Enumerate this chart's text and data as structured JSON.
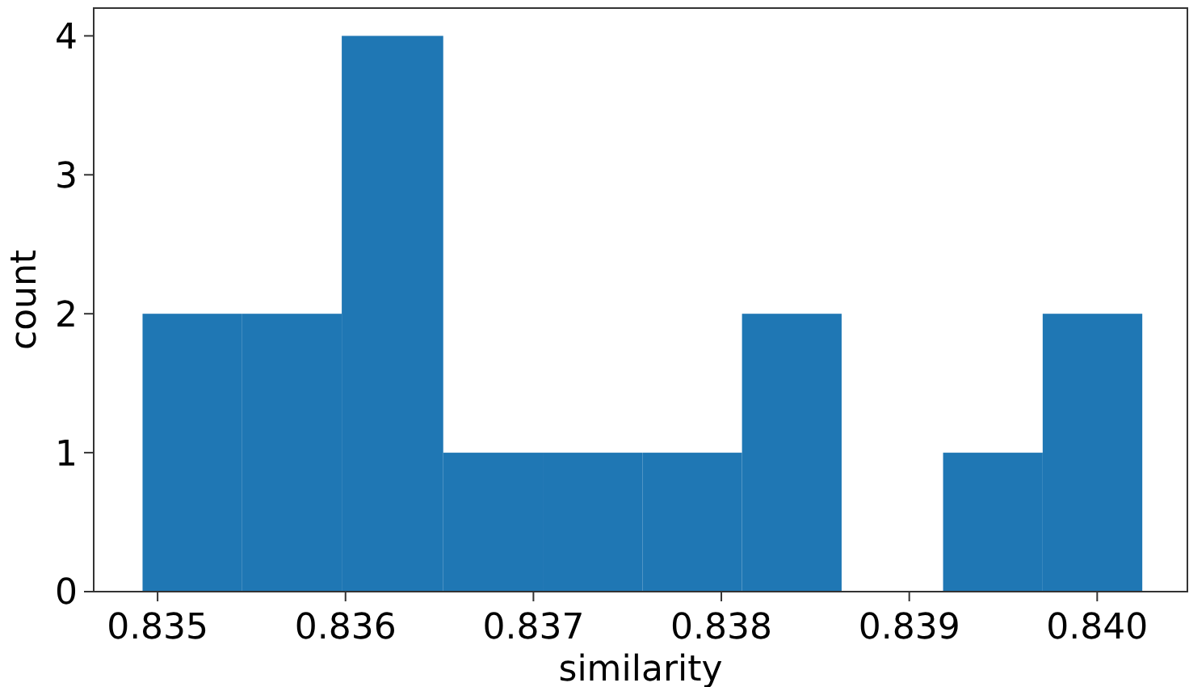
{
  "chart_data": {
    "type": "histogram",
    "xlabel": "similarity",
    "ylabel": "count",
    "bins": [
      0.83492,
      0.83545,
      0.83598,
      0.83652,
      0.83705,
      0.83758,
      0.83811,
      0.83864,
      0.83918,
      0.83971,
      0.84024
    ],
    "values": [
      2,
      2,
      4,
      1,
      1,
      1,
      2,
      0,
      1,
      2
    ],
    "color": "#1f77b4",
    "xlim": [
      0.83466,
      0.84048
    ],
    "xticks": [
      {
        "value": 0.835,
        "label": "0.835"
      },
      {
        "value": 0.836,
        "label": "0.836"
      },
      {
        "value": 0.837,
        "label": "0.837"
      },
      {
        "value": 0.838,
        "label": "0.838"
      },
      {
        "value": 0.839,
        "label": "0.839"
      },
      {
        "value": 0.84,
        "label": "0.840"
      }
    ],
    "ylim": [
      0,
      4.2
    ],
    "yticks": [
      0,
      1,
      2,
      3,
      4
    ],
    "grid": false
  }
}
